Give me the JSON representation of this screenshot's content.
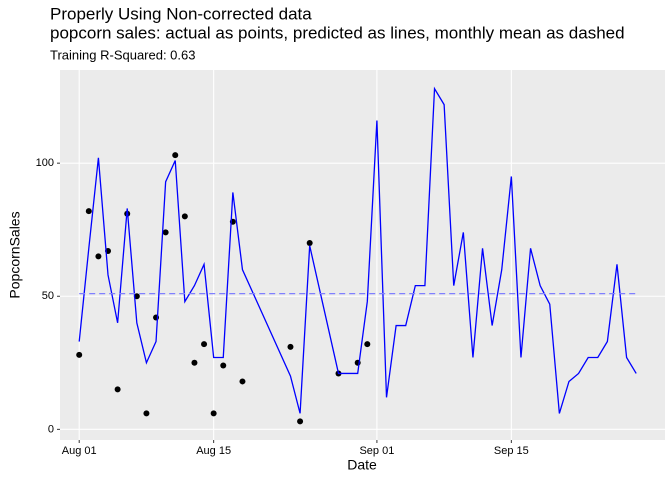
{
  "chart_data": {
    "type": "line",
    "title": "Properly Using Non-corrected data",
    "subtitle": "popcorn sales: actual as points, predicted as lines, monthly mean as dashed",
    "annotation": "Training R-Squared: 0.63",
    "x_label": "Date",
    "y_label": "PopcornSales",
    "xlim": [
      "Jul 30",
      "Oct 01"
    ],
    "xticks": [
      "Aug 01",
      "Aug 15",
      "Sep 01",
      "Sep 15"
    ],
    "ylim": [
      -4,
      135
    ],
    "yticks": [
      0,
      50,
      100
    ],
    "grid": true,
    "series": [
      {
        "name": "actual",
        "mark": "points",
        "color": "#000000",
        "x": [
          "Aug 01",
          "Aug 02",
          "Aug 03",
          "Aug 04",
          "Aug 05",
          "Aug 06",
          "Aug 07",
          "Aug 08",
          "Aug 09",
          "Aug 10",
          "Aug 11",
          "Aug 12",
          "Aug 13",
          "Aug 14",
          "Aug 15",
          "Aug 16",
          "Aug 17",
          "Aug 18",
          "Aug 23",
          "Aug 24",
          "Aug 25",
          "Aug 28",
          "Aug 30",
          "Aug 31"
        ],
        "values": [
          28,
          82,
          65,
          67,
          15,
          81,
          50,
          6,
          42,
          74,
          103,
          80,
          25,
          32,
          6,
          24,
          78,
          18,
          31,
          3,
          70,
          21,
          25,
          32
        ]
      },
      {
        "name": "predicted",
        "mark": "line",
        "color": "#0000ff",
        "x": [
          "Aug 01",
          "Aug 02",
          "Aug 03",
          "Aug 04",
          "Aug 05",
          "Aug 06",
          "Aug 07",
          "Aug 08",
          "Aug 09",
          "Aug 10",
          "Aug 11",
          "Aug 12",
          "Aug 13",
          "Aug 14",
          "Aug 15",
          "Aug 16",
          "Aug 17",
          "Aug 18",
          "Aug 23",
          "Aug 24",
          "Aug 25",
          "Aug 28",
          "Aug 29",
          "Aug 30",
          "Aug 31",
          "Sep 01",
          "Sep 02",
          "Sep 03",
          "Sep 04",
          "Sep 05",
          "Sep 06",
          "Sep 07",
          "Sep 08",
          "Sep 09",
          "Sep 10",
          "Sep 11",
          "Sep 12",
          "Sep 13",
          "Sep 14",
          "Sep 15",
          "Sep 16",
          "Sep 17",
          "Sep 18",
          "Sep 19",
          "Sep 20",
          "Sep 21",
          "Sep 22",
          "Sep 23",
          "Sep 24",
          "Sep 25",
          "Sep 26",
          "Sep 27",
          "Sep 28"
        ],
        "values": [
          33,
          68,
          102,
          58,
          40,
          83,
          40,
          25,
          33,
          93,
          101,
          48,
          54,
          62,
          27,
          27,
          89,
          60,
          20,
          6,
          69,
          21,
          21,
          21,
          48,
          116,
          12,
          39,
          39,
          54,
          54,
          128,
          122,
          54,
          74,
          27,
          68,
          39,
          60,
          95,
          27,
          68,
          54,
          47,
          6,
          18,
          21,
          27,
          27,
          33,
          62,
          27,
          21
        ]
      },
      {
        "name": "monthly mean",
        "mark": "dashed",
        "color": "#8080ff",
        "x": [
          "Aug 01",
          "Sep 28"
        ],
        "values": [
          51,
          51
        ]
      }
    ]
  }
}
